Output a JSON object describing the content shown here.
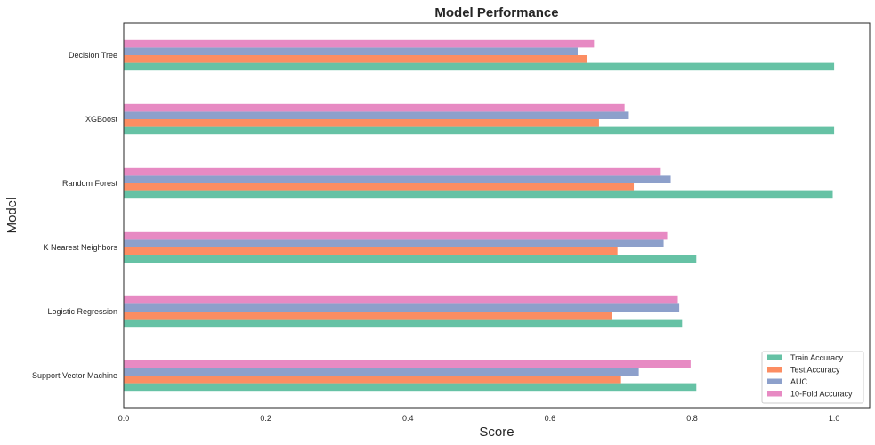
{
  "chart_data": {
    "type": "bar",
    "orientation": "horizontal",
    "title": "Model Performance",
    "xlabel": "Score",
    "ylabel": "Model",
    "xlim": [
      0,
      1.05
    ],
    "xticks": [
      "0.0",
      "0.2",
      "0.4",
      "0.6",
      "0.8",
      "1.0"
    ],
    "grid": false,
    "legend_position": "bottom-right",
    "categories": [
      "Decision Tree",
      "XGBoost",
      "Random Forest",
      "K Nearest Neighbors",
      "Logistic Regression",
      "Support Vector Machine"
    ],
    "series": [
      {
        "name": "Train Accuracy",
        "color": "#66c2a5",
        "values": [
          1.0,
          1.0,
          0.998,
          0.806,
          0.786,
          0.806
        ]
      },
      {
        "name": "Test Accuracy",
        "color": "#fc8d62",
        "values": [
          0.652,
          0.669,
          0.718,
          0.695,
          0.687,
          0.7
        ]
      },
      {
        "name": "AUC",
        "color": "#8da0cb",
        "values": [
          0.639,
          0.711,
          0.77,
          0.76,
          0.782,
          0.725
        ]
      },
      {
        "name": "10-Fold Accuracy",
        "color": "#e78ac3",
        "values": [
          0.662,
          0.705,
          0.756,
          0.765,
          0.78,
          0.798
        ]
      }
    ]
  }
}
